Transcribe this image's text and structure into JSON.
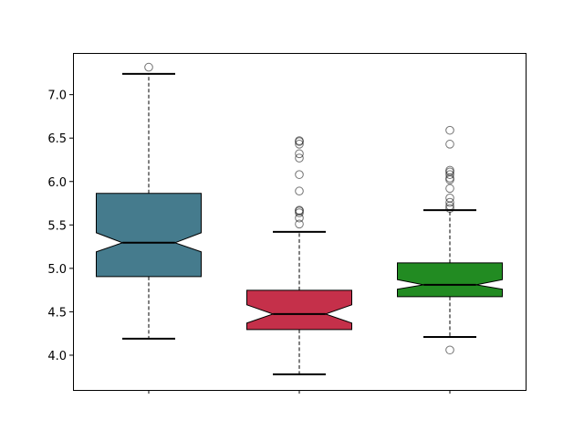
{
  "chart_data": {
    "type": "boxplot",
    "notched": true,
    "title": "",
    "xlabel": "",
    "ylabel": "",
    "ylim": [
      3.6,
      7.48
    ],
    "yticks": [
      "4.0",
      "4.5",
      "5.0",
      "5.5",
      "6.0",
      "6.5",
      "7.0"
    ],
    "grid": false,
    "boxes": [
      {
        "color": "#457b8d",
        "q1": 4.905,
        "median": 5.295,
        "q3": 5.863,
        "notch_low": 5.19,
        "notch_high": 5.41,
        "whisker_low": 4.19,
        "whisker_high": 7.24,
        "outliers": [
          7.316
        ]
      },
      {
        "color": "#c5304a",
        "q1": 4.295,
        "median": 4.474,
        "q3": 4.747,
        "notch_low": 4.37,
        "notch_high": 4.58,
        "whisker_low": 3.78,
        "whisker_high": 5.42,
        "outliers": [
          5.51,
          5.58,
          5.64,
          5.66,
          5.67,
          5.89,
          6.08,
          6.27,
          6.32,
          6.43,
          6.46,
          6.47
        ]
      },
      {
        "color": "#228b22",
        "q1": 4.674,
        "median": 4.81,
        "q3": 5.063,
        "notch_low": 4.76,
        "notch_high": 4.87,
        "whisker_low": 4.21,
        "whisker_high": 5.67,
        "outliers": [
          4.06,
          5.69,
          5.72,
          5.76,
          5.81,
          5.92,
          6.02,
          6.04,
          6.08,
          6.11,
          6.13,
          6.43,
          6.59
        ]
      }
    ]
  }
}
